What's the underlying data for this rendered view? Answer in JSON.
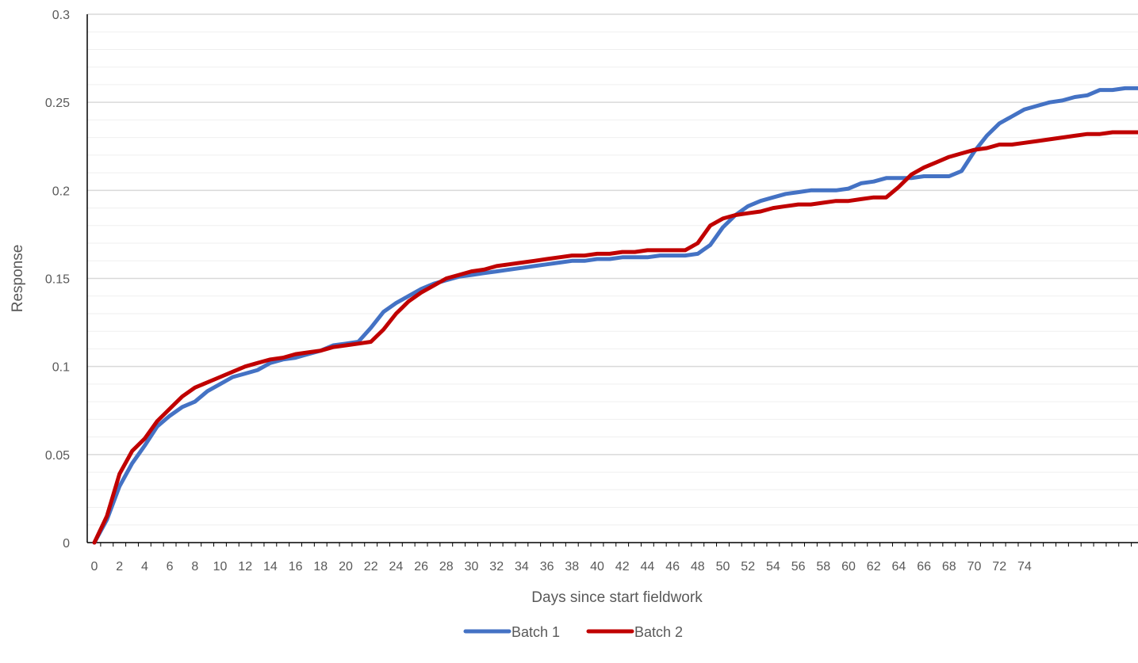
{
  "chart_data": {
    "type": "line",
    "title": "",
    "xlabel": "Days since start fieldwork",
    "ylabel": "Response",
    "ylim": [
      0,
      0.3
    ],
    "xlim": [
      0,
      83
    ],
    "grid": true,
    "legend_position": "bottom",
    "y_ticks": [
      "0",
      "0.05",
      "0.1",
      "0.15",
      "0.2",
      "0.25",
      "0.3"
    ],
    "x_tick_labels": [
      "0",
      "2",
      "4",
      "6",
      "8",
      "10",
      "12",
      "14",
      "16",
      "18",
      "20",
      "22",
      "24",
      "26",
      "28",
      "30",
      "32",
      "34",
      "36",
      "38",
      "40",
      "42",
      "44",
      "46",
      "48",
      "50",
      "52",
      "54",
      "56",
      "58",
      "60",
      "62",
      "64",
      "66",
      "68",
      "70",
      "72",
      "74"
    ],
    "x": [
      0,
      1,
      2,
      3,
      4,
      5,
      6,
      7,
      8,
      9,
      10,
      11,
      12,
      13,
      14,
      15,
      16,
      17,
      18,
      19,
      20,
      21,
      22,
      23,
      24,
      25,
      26,
      27,
      28,
      29,
      30,
      31,
      32,
      33,
      34,
      35,
      36,
      37,
      38,
      39,
      40,
      41,
      42,
      43,
      44,
      45,
      46,
      47,
      48,
      49,
      50,
      51,
      52,
      53,
      54,
      55,
      56,
      57,
      58,
      59,
      60,
      61,
      62,
      63,
      64,
      65,
      66,
      67,
      68,
      69,
      70,
      71,
      72,
      73,
      74,
      75,
      76,
      77,
      78,
      79,
      80,
      81,
      82,
      83
    ],
    "series": [
      {
        "name": "Batch 1",
        "color": "#4472C4",
        "values": [
          0,
          0.013,
          0.032,
          0.045,
          0.055,
          0.066,
          0.072,
          0.077,
          0.08,
          0.086,
          0.09,
          0.094,
          0.096,
          0.098,
          0.102,
          0.104,
          0.105,
          0.107,
          0.109,
          0.112,
          0.113,
          0.114,
          0.122,
          0.131,
          0.136,
          0.14,
          0.144,
          0.147,
          0.149,
          0.151,
          0.152,
          0.153,
          0.154,
          0.155,
          0.156,
          0.157,
          0.158,
          0.159,
          0.16,
          0.16,
          0.161,
          0.161,
          0.162,
          0.162,
          0.162,
          0.163,
          0.163,
          0.163,
          0.164,
          0.169,
          0.179,
          0.186,
          0.191,
          0.194,
          0.196,
          0.198,
          0.199,
          0.2,
          0.2,
          0.2,
          0.201,
          0.204,
          0.205,
          0.207,
          0.207,
          0.207,
          0.208,
          0.208,
          0.208,
          0.211,
          0.222,
          0.231,
          0.238,
          0.242,
          0.246,
          0.248,
          0.25,
          0.251,
          0.253,
          0.254,
          0.257,
          0.257,
          0.258,
          0.258
        ]
      },
      {
        "name": "Batch 2",
        "color": "#C00000",
        "values": [
          0,
          0.015,
          0.039,
          0.052,
          0.059,
          0.069,
          0.076,
          0.083,
          0.088,
          0.091,
          0.094,
          0.097,
          0.1,
          0.102,
          0.104,
          0.105,
          0.107,
          0.108,
          0.109,
          0.111,
          0.112,
          0.113,
          0.114,
          0.121,
          0.13,
          0.137,
          0.142,
          0.146,
          0.15,
          0.152,
          0.154,
          0.155,
          0.157,
          0.158,
          0.159,
          0.16,
          0.161,
          0.162,
          0.163,
          0.163,
          0.164,
          0.164,
          0.165,
          0.165,
          0.166,
          0.166,
          0.166,
          0.166,
          0.17,
          0.18,
          0.184,
          0.186,
          0.187,
          0.188,
          0.19,
          0.191,
          0.192,
          0.192,
          0.193,
          0.194,
          0.194,
          0.195,
          0.196,
          0.196,
          0.202,
          0.209,
          0.213,
          0.216,
          0.219,
          0.221,
          0.223,
          0.224,
          0.226,
          0.226,
          0.227,
          0.228,
          0.229,
          0.23,
          0.231,
          0.232,
          0.232,
          0.233,
          0.233,
          0.233
        ]
      }
    ]
  }
}
